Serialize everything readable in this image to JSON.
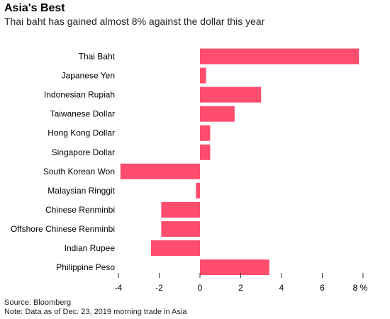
{
  "chart_data": {
    "type": "bar",
    "orientation": "horizontal",
    "title": "Asia's Best",
    "subtitle": "Thai baht has gained almost 8% against the dollar this year",
    "categories": [
      "Thai Baht",
      "Japanese Yen",
      "Indonesian Rupiah",
      "Taiwanese Dollar",
      "Hong Kong Dollar",
      "Singapore Dollar",
      "South Korean Won",
      "Malaysian Ringgit",
      "Chinese Renminbi",
      "Offshore Chinese Renminbi",
      "Indian Rupee",
      "Philippine Peso"
    ],
    "values": [
      7.8,
      0.3,
      3.0,
      1.7,
      0.5,
      0.5,
      -3.9,
      -0.2,
      -1.9,
      -1.9,
      -2.4,
      3.4
    ],
    "xlim": [
      -4,
      8
    ],
    "xticks": [
      "-4",
      "-2",
      "0",
      "2",
      "4",
      "6",
      "8 %"
    ],
    "xtick_values": [
      -4,
      -2,
      0,
      2,
      4,
      6,
      8
    ],
    "grid": false,
    "bar_color": "#ff4d6d"
  },
  "footer": {
    "source": "Source: Bloomberg",
    "note": "Note: Data as of Dec. 23, 2019 morning trade in Asia"
  }
}
